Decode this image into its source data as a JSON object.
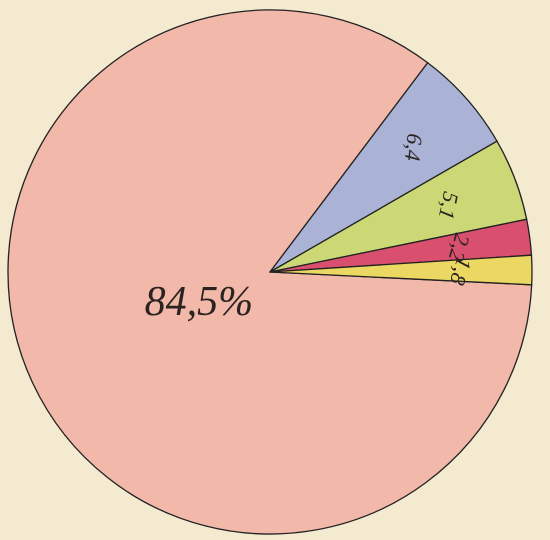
{
  "chart_data": {
    "type": "pie",
    "categories": [
      null,
      null,
      null,
      null,
      null
    ],
    "values": [
      84.5,
      6.4,
      5.1,
      2.2,
      1.8
    ],
    "value_labels": [
      "84,5%",
      "6,4",
      "5,1",
      "2,2",
      "1,8"
    ],
    "colors": [
      "#f2b8aa",
      "#aab3d6",
      "#cbd875",
      "#d9506e",
      "#ebd862"
    ]
  }
}
